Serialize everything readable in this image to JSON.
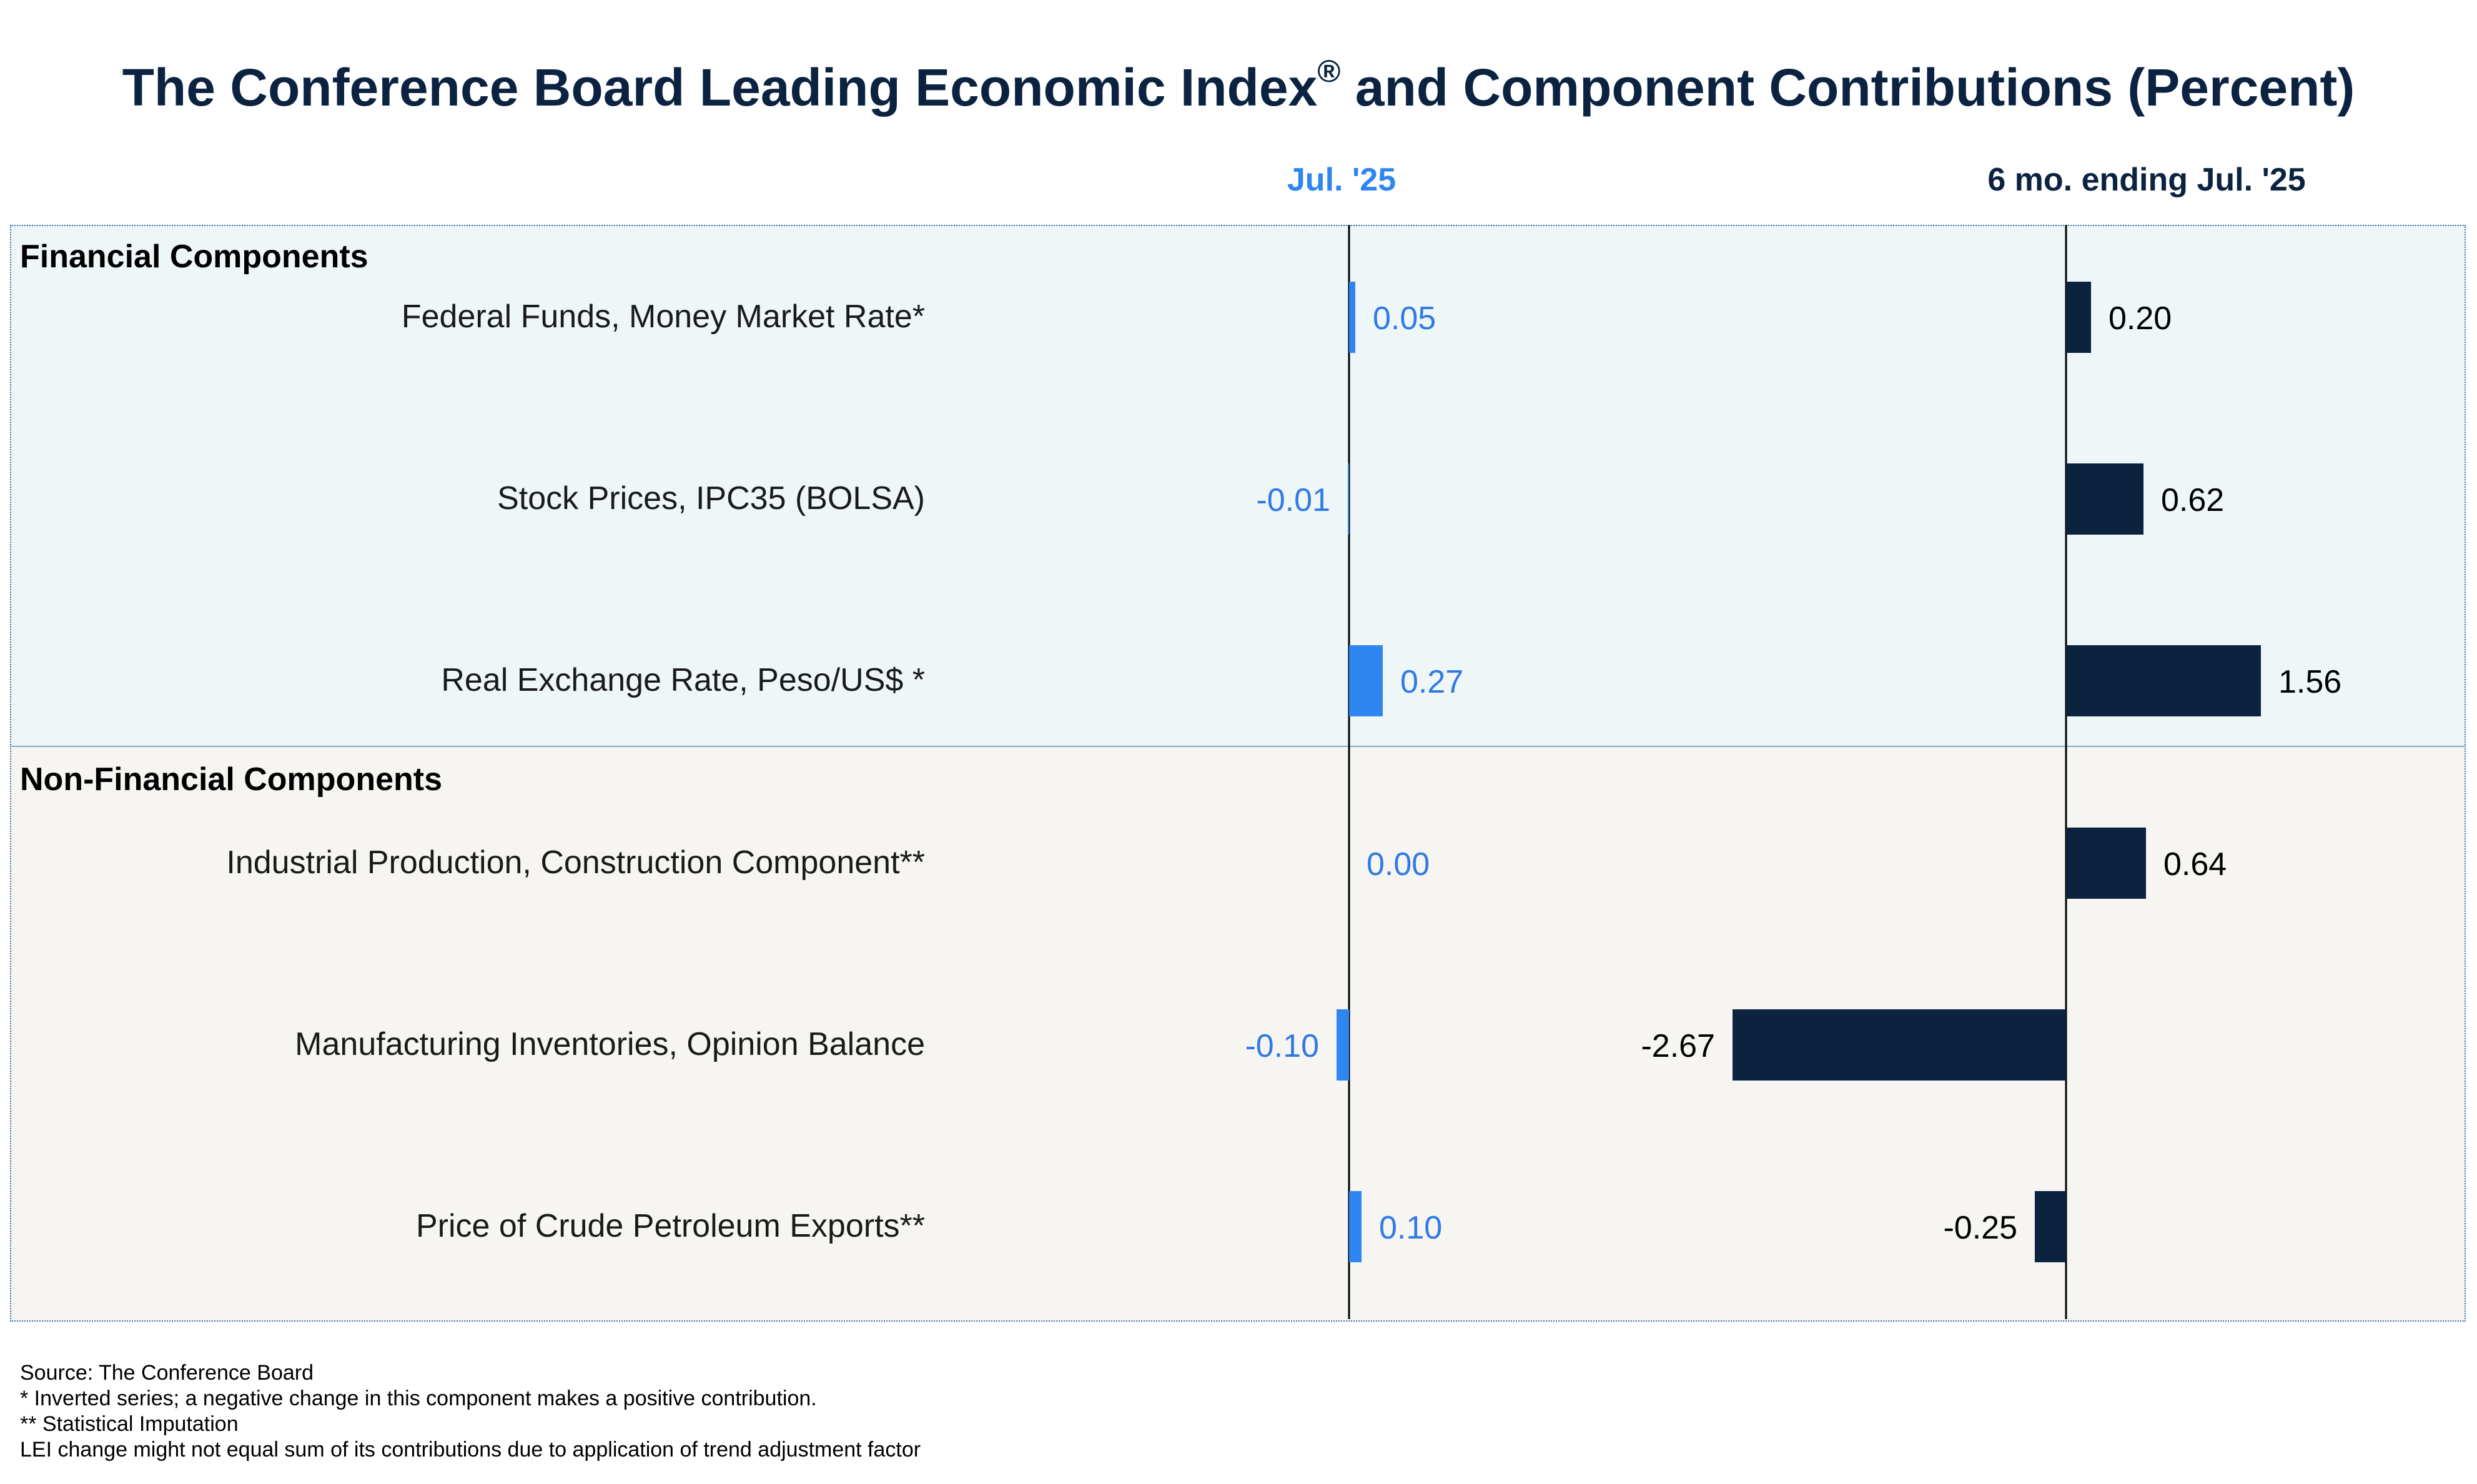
{
  "title": {
    "main": "The Conference Board Leading Economic Index",
    "reg_mark": "®",
    "rest": " and Component Contributions (Percent)"
  },
  "colors": {
    "title": "#0b2341",
    "monthly_bar": "#2f86f0",
    "monthly_text": "#2f7ae5",
    "sixmo_bar": "#0c2340",
    "sixmo_text": "#000000",
    "financial_bg": "#eef6f8",
    "nonfinancial_bg": "#f6f5f2"
  },
  "groups": [
    {
      "label": "Financial Components"
    },
    {
      "label": "Non-Financial Components"
    }
  ],
  "chart_data": {
    "type": "bar",
    "orientation": "horizontal",
    "title": "The Conference Board Leading Economic Index® and Component Contributions (Percent)",
    "categories": [
      "Federal Funds, Money Market Rate*",
      "Stock Prices, IPC35 (BOLSA)",
      "Real Exchange Rate, Peso/US$ *",
      "Industrial Production, Construction Component**",
      "Manufacturing Inventories, Opinion Balance",
      "Price of Crude Petroleum Exports**"
    ],
    "category_groups": [
      "Financial Components",
      "Financial Components",
      "Financial Components",
      "Non-Financial Components",
      "Non-Financial Components",
      "Non-Financial Components"
    ],
    "series": [
      {
        "name": "Jul. '25",
        "values": [
          0.05,
          -0.01,
          0.27,
          0.0,
          -0.1,
          0.1
        ],
        "labels": [
          "0.05",
          "-0.01",
          "0.27",
          "0.00",
          "-0.10",
          "0.10"
        ]
      },
      {
        "name": "6 mo. ending Jul. '25",
        "values": [
          0.2,
          0.62,
          1.56,
          0.64,
          -2.67,
          -0.25
        ],
        "labels": [
          "0.20",
          "0.62",
          "1.56",
          "0.64",
          "-2.67",
          "-0.25"
        ]
      }
    ],
    "grid": false,
    "legend": "none"
  },
  "footnotes": [
    "Source: The Conference Board",
    "*  Inverted series; a negative change in this component makes a positive contribution.",
    "** Statistical Imputation",
    "LEI change might not equal sum of its contributions due to application of trend adjustment factor"
  ]
}
